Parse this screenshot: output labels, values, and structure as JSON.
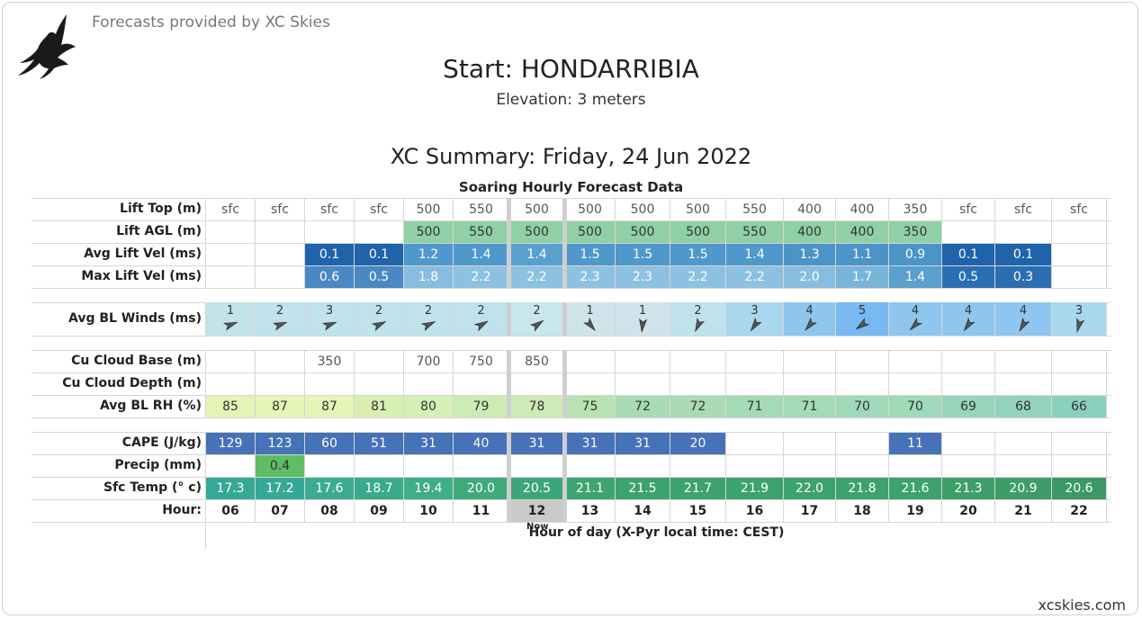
{
  "header": {
    "provider": "Forecasts provided by XC Skies",
    "title": "Start: HONDARRIBIA",
    "elevation": "Elevation: 3 meters",
    "summary": "XC Summary: Friday, 24 Jun 2022",
    "table_title": "Soaring Hourly Forecast Data"
  },
  "hours": [
    "06",
    "07",
    "08",
    "09",
    "10",
    "11",
    "12",
    "13",
    "14",
    "15",
    "16",
    "17",
    "18",
    "19",
    "20",
    "21",
    "22"
  ],
  "now_label": "Now",
  "now_index": 6,
  "hour_caption": "Hour of day (X-Pyr local time: CEST)",
  "footer": "xcskies.com",
  "rows": {
    "lift_top": {
      "label": "Lift Top (m)",
      "values": [
        "sfc",
        "sfc",
        "sfc",
        "sfc",
        "500",
        "550",
        "500",
        "500",
        "500",
        "500",
        "550",
        "400",
        "400",
        "350",
        "sfc",
        "sfc",
        "sfc"
      ]
    },
    "lift_agl": {
      "label": "Lift AGL (m)",
      "values": [
        "",
        "",
        "",
        "",
        "500",
        "550",
        "500",
        "500",
        "500",
        "500",
        "550",
        "400",
        "400",
        "350",
        "",
        "",
        ""
      ],
      "colors": [
        "",
        "",
        "",
        "",
        "#8fd0a6",
        "#8fd0a6",
        "#8fd0a6",
        "#8fd0a6",
        "#8fd0a6",
        "#8fd0a6",
        "#8fd0a6",
        "#8fd0a6",
        "#8fd0a6",
        "#8fd0a6",
        "",
        "",
        ""
      ]
    },
    "avg_lift": {
      "label": "Avg Lift Vel (ms)",
      "values": [
        "",
        "",
        "0.1",
        "0.1",
        "1.2",
        "1.4",
        "1.4",
        "1.5",
        "1.5",
        "1.5",
        "1.4",
        "1.3",
        "1.1",
        "0.9",
        "0.1",
        "0.1",
        ""
      ],
      "colors": [
        "",
        "",
        "#1f63ab",
        "#1f63ab",
        "#4f98cb",
        "#4f98cb",
        "#5aa0cf",
        "#4f98cb",
        "#4f98cb",
        "#4f98cb",
        "#4f98cb",
        "#4a94c8",
        "#4a94c8",
        "#4a94c8",
        "#1f63ab",
        "#1f63ab",
        ""
      ]
    },
    "max_lift": {
      "label": "Max Lift Vel (ms)",
      "values": [
        "",
        "",
        "0.6",
        "0.5",
        "1.8",
        "2.2",
        "2.2",
        "2.3",
        "2.3",
        "2.2",
        "2.2",
        "2.0",
        "1.7",
        "1.4",
        "0.5",
        "0.3",
        ""
      ],
      "colors": [
        "",
        "",
        "#4a88c4",
        "#4a88c4",
        "#86bde0",
        "#8cc1e2",
        "#8cc1e2",
        "#8cc1e2",
        "#8cc1e2",
        "#8cc1e2",
        "#8cc1e2",
        "#86bde0",
        "#79b4db",
        "#5a9fce",
        "#2b6fb2",
        "#2b6fb2",
        ""
      ]
    },
    "winds": {
      "label": "Avg BL Winds (ms)",
      "speeds": [
        "1",
        "2",
        "3",
        "2",
        "2",
        "2",
        "2",
        "1",
        "1",
        "2",
        "3",
        "4",
        "5",
        "4",
        "4",
        "4",
        "3"
      ],
      "directions": [
        70,
        70,
        70,
        65,
        65,
        60,
        55,
        140,
        185,
        205,
        215,
        220,
        235,
        225,
        215,
        210,
        195
      ],
      "colors": [
        "#c3e3ea",
        "#bfe2ec",
        "#bfe2ec",
        "#bfe2ec",
        "#bfe2ec",
        "#bfe2ec",
        "#c8e6ec",
        "#cfe4ea",
        "#cfe4ea",
        "#bfe2ec",
        "#a9d7ee",
        "#8ec6f0",
        "#7ab8f2",
        "#8ec6f0",
        "#8ec6f0",
        "#8ec6f0",
        "#a9d7ee"
      ]
    },
    "cu_base": {
      "label": "Cu Cloud Base (m)",
      "values": [
        "",
        "",
        "350",
        "",
        "700",
        "750",
        "850",
        "",
        "",
        "",
        "",
        "",
        "",
        "",
        "",
        "",
        ""
      ]
    },
    "cu_depth": {
      "label": "Cu Cloud Depth (m)",
      "values": [
        "",
        "",
        "",
        "",
        "",
        "",
        "",
        "",
        "",
        "",
        "",
        "",
        "",
        "",
        "",
        "",
        ""
      ]
    },
    "rh": {
      "label": "Avg BL RH (%)",
      "values": [
        "85",
        "87",
        "87",
        "81",
        "80",
        "79",
        "78",
        "75",
        "72",
        "72",
        "71",
        "71",
        "70",
        "70",
        "69",
        "68",
        "66"
      ],
      "colors": [
        "#e4f4b4",
        "#e6f5b5",
        "#e6f5b5",
        "#d8efb2",
        "#d6efb4",
        "#cdebb4",
        "#cdebb4",
        "#b7e2b3",
        "#a9dcb4",
        "#a9dcb4",
        "#a4dbb6",
        "#a4dbb6",
        "#9fd9b8",
        "#9fd9b8",
        "#97d5ba",
        "#93d3bb",
        "#8ad0bd"
      ]
    },
    "cape": {
      "label": "CAPE (J/kg)",
      "values": [
        "129",
        "123",
        "60",
        "51",
        "31",
        "40",
        "31",
        "31",
        "31",
        "20",
        "",
        "",
        "",
        "11",
        "",
        "",
        ""
      ],
      "colors": [
        "#4672b7",
        "#4672b7",
        "#4672b7",
        "#4672b7",
        "#4672b7",
        "#4672b7",
        "#4672b7",
        "#4672b7",
        "#4672b7",
        "#4672b7",
        "",
        "",
        "",
        "#4672b7",
        "",
        "",
        ""
      ]
    },
    "precip": {
      "label": "Precip (mm)",
      "values": [
        "",
        "0.4",
        "",
        "",
        "",
        "",
        "",
        "",
        "",
        "",
        "",
        "",
        "",
        "",
        "",
        "",
        ""
      ],
      "colors": [
        "",
        "#5fbd63",
        "",
        "",
        "",
        "",
        "",
        "",
        "",
        "",
        "",
        "",
        "",
        "",
        "",
        "",
        ""
      ]
    },
    "sfc_temp": {
      "label": "Sfc Temp (° c)",
      "values": [
        "17.3",
        "17.2",
        "17.6",
        "18.7",
        "19.4",
        "20.0",
        "20.5",
        "21.1",
        "21.5",
        "21.7",
        "21.9",
        "22.0",
        "21.8",
        "21.6",
        "21.3",
        "20.9",
        "20.6"
      ],
      "colors": [
        "#36a896",
        "#36a896",
        "#3aab92",
        "#3aa98c",
        "#3fad88",
        "#3faa78",
        "#3ea676",
        "#3ea470",
        "#3da26e",
        "#3da26e",
        "#3da26e",
        "#3da26e",
        "#3da26e",
        "#3da26e",
        "#3d9e6a",
        "#3d9c68",
        "#3c9866"
      ]
    },
    "hour_label": "Hour:"
  }
}
